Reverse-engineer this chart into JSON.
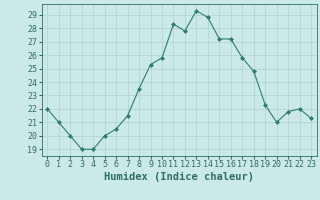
{
  "x": [
    0,
    1,
    2,
    3,
    4,
    5,
    6,
    7,
    8,
    9,
    10,
    11,
    12,
    13,
    14,
    15,
    16,
    17,
    18,
    19,
    20,
    21,
    22,
    23
  ],
  "y": [
    22,
    21,
    20,
    19,
    19,
    20,
    20.5,
    21.5,
    23.5,
    25.3,
    25.8,
    28.3,
    27.8,
    29.3,
    28.8,
    27.2,
    27.2,
    25.8,
    24.8,
    22.3,
    21.0,
    21.8,
    22.0,
    21.3
  ],
  "line_color": "#2e7d6e",
  "marker": "D",
  "marker_size": 2,
  "bg_color": "#cce9e9",
  "grid_major_color": "#b0d0d0",
  "grid_minor_color": "#b0d0d0",
  "xlabel": "Humidex (Indice chaleur)",
  "xlim": [
    -0.5,
    23.5
  ],
  "ylim": [
    18.5,
    29.8
  ],
  "yticks": [
    19,
    20,
    21,
    22,
    23,
    24,
    25,
    26,
    27,
    28,
    29
  ],
  "xticks": [
    0,
    1,
    2,
    3,
    4,
    5,
    6,
    7,
    8,
    9,
    10,
    11,
    12,
    13,
    14,
    15,
    16,
    17,
    18,
    19,
    20,
    21,
    22,
    23
  ],
  "tick_color": "#2e6e60",
  "label_fontsize": 6,
  "xlabel_fontsize": 7.5
}
